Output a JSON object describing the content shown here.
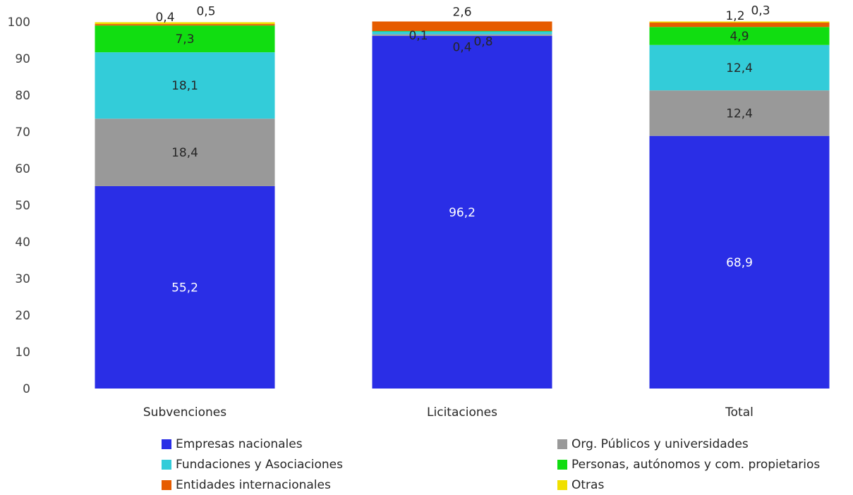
{
  "chart_data": {
    "type": "bar",
    "stacked": true,
    "categories": [
      "Subvenciones",
      "Licitaciones",
      "Total"
    ],
    "series": [
      {
        "name": "Empresas nacionales",
        "color": "#2a2ee6",
        "label_color": "#ffffff",
        "values": [
          55.2,
          96.2,
          68.9
        ],
        "labels": [
          "55,2",
          "96,2",
          "68,9"
        ]
      },
      {
        "name": "Org. Públicos y universidades",
        "color": "#999999",
        "label_color": "#262626",
        "values": [
          18.4,
          0.4,
          12.4
        ],
        "labels": [
          "18,4",
          "0,4",
          "12,4"
        ]
      },
      {
        "name": "Fundaciones y Asociaciones",
        "color": "#33ccd9",
        "label_color": "#262626",
        "values": [
          18.1,
          0.8,
          12.4
        ],
        "labels": [
          "18,1",
          "0,8",
          "12,4"
        ]
      },
      {
        "name": "Personas, autónomos y com. propietarios",
        "color": "#11dd11",
        "label_color": "#262626",
        "values": [
          7.3,
          0.1,
          4.9
        ],
        "labels": [
          "7,3",
          "0,1",
          "4,9"
        ]
      },
      {
        "name": "Entidades internacionales",
        "color": "#e65c00",
        "label_color": "#262626",
        "values": [
          0.4,
          2.6,
          1.2
        ],
        "labels": [
          "0,4",
          "2,6",
          "1,2"
        ]
      },
      {
        "name": "Otras",
        "color": "#f0e000",
        "label_color": "#262626",
        "values": [
          0.5,
          0.0,
          0.3
        ],
        "labels": [
          "0,5",
          "",
          "0,3"
        ]
      }
    ],
    "ylim": [
      0,
      100
    ],
    "yticks": [
      "0",
      "10",
      "20",
      "30",
      "40",
      "50",
      "60",
      "70",
      "80",
      "90",
      "100"
    ],
    "grid": false,
    "legend_position": "bottom"
  }
}
